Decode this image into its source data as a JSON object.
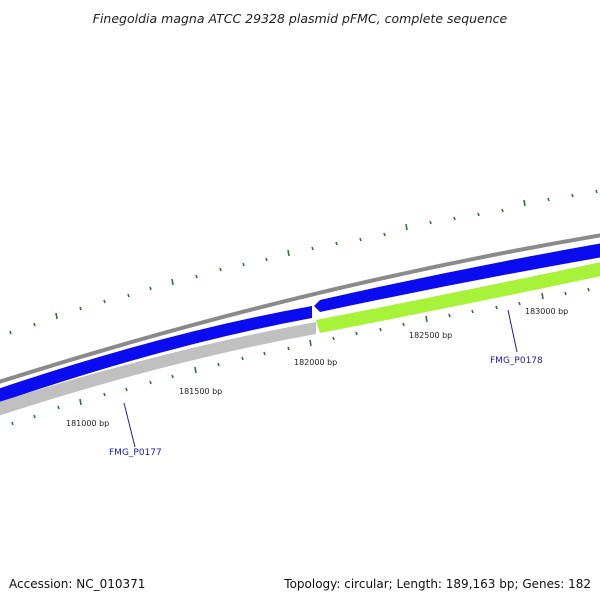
{
  "title": "Finegoldia magna ATCC 29328 plasmid pFMC, complete sequence",
  "footer": {
    "accession": "Accession: NC_010371",
    "summary": "Topology: circular; Length: 189,163 bp; Genes: 182"
  },
  "position_labels": [
    "181000 bp",
    "181500 bp",
    "182000 bp",
    "182500 bp",
    "183000 bp"
  ],
  "genes": [
    {
      "name": "FMG_P0177",
      "strand": "forward"
    },
    {
      "name": "FMG_P0178",
      "strand": "reverse"
    }
  ],
  "colors": {
    "backbone": "#8a8a8a",
    "forward_cds": "#0b0bf0",
    "reverse_cds_gene_1": "#c0c0c0",
    "reverse_cds_gene_2": "#a8f23a",
    "tick": "#2a7a2a",
    "gene_label": "#1a1aaa"
  }
}
